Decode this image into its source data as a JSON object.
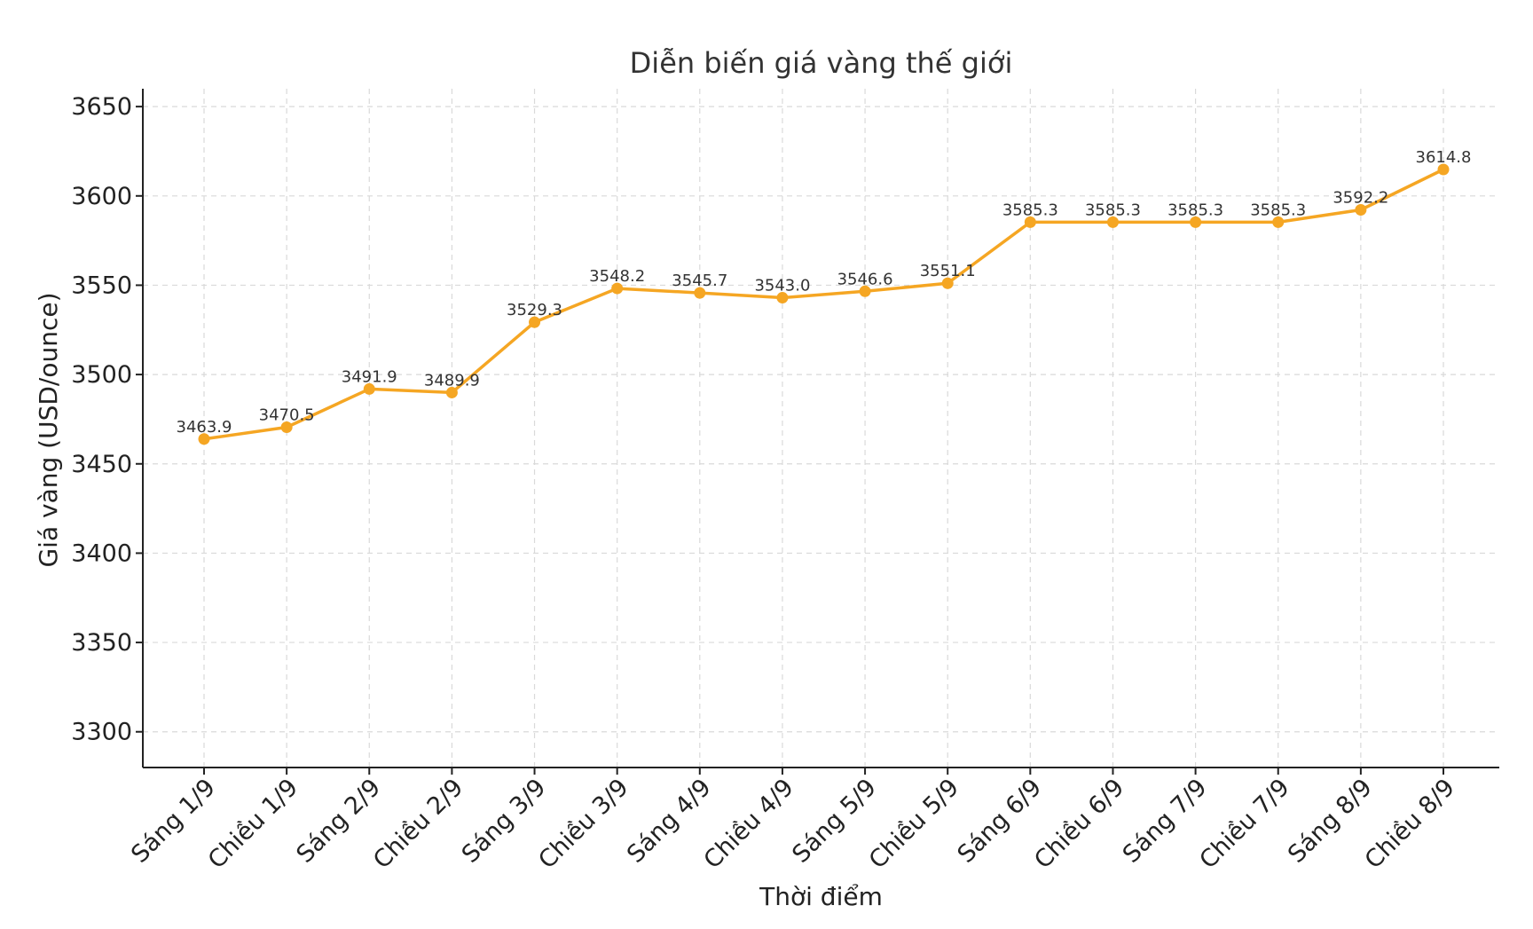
{
  "chart_data": {
    "type": "line",
    "title": "Diễn biến giá vàng thế giới",
    "xlabel": "Thời điểm",
    "ylabel": "Giá vàng (USD/ounce)",
    "categories": [
      "Sáng 1/9",
      "Chiều 1/9",
      "Sáng 2/9",
      "Chiều 2/9",
      "Sáng 3/9",
      "Chiều 3/9",
      "Sáng 4/9",
      "Chiều 4/9",
      "Sáng 5/9",
      "Chiều 5/9",
      "Sáng 6/9",
      "Chiều 6/9",
      "Sáng 7/9",
      "Chiều 7/9",
      "Sáng 8/9",
      "Chiều 8/9"
    ],
    "series": [
      {
        "values": [
          3463.9,
          3470.5,
          3491.9,
          3489.9,
          3529.3,
          3548.2,
          3545.7,
          3543.0,
          3546.6,
          3551.1,
          3585.3,
          3585.3,
          3585.3,
          3585.3,
          3592.2,
          3614.8
        ],
        "labels": [
          "3463.9",
          "3470.5",
          "3491.9",
          "3489.9",
          "3529.3",
          "3548.2",
          "3545.7",
          "3543.0",
          "3546.6",
          "3551.1",
          "3585.3",
          "3585.3",
          "3585.3",
          "3585.3",
          "3592.2",
          "3614.8"
        ],
        "color": "#F5A623"
      }
    ],
    "yticks": [
      3300,
      3350,
      3400,
      3450,
      3500,
      3550,
      3600,
      3650
    ],
    "ytick_labels": [
      "3300",
      "3350",
      "3400",
      "3450",
      "3500",
      "3550",
      "3600",
      "3650"
    ],
    "ylim": [
      3280,
      3660
    ],
    "grid": true,
    "line_color": "#F5A623",
    "grid_color": "#d9d9d9"
  }
}
